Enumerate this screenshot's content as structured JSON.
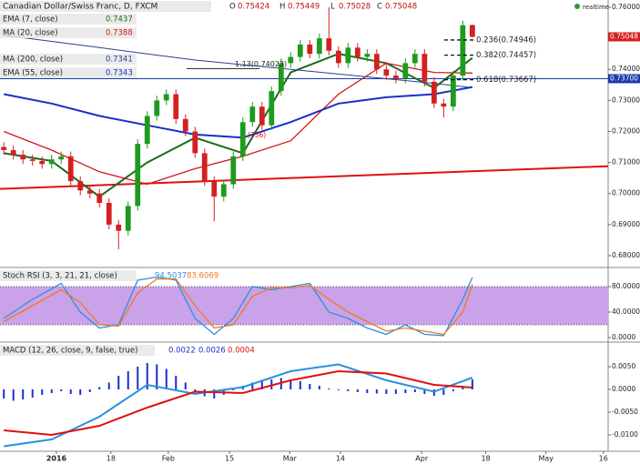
{
  "realtime": "realtime",
  "chart_data": [
    {
      "type": "candlestick",
      "title": "Canadian Dollar/Swiss Franc, D, FXCM",
      "ohlc_labels": [
        "O",
        "H",
        "L",
        "C"
      ],
      "up_color": "#1f9a1f",
      "down_color": "#d42020",
      "xlim": [
        -0.4,
        63.2
      ],
      "ylim": [
        0.67648,
        0.76234
      ],
      "yticks": [
        {
          "value": 0.68,
          "label": "0.68000"
        },
        {
          "value": 0.69,
          "label": "0.69000"
        },
        {
          "value": 0.7,
          "label": "0.70000"
        },
        {
          "value": 0.71,
          "label": "0.71000"
        },
        {
          "value": 0.72,
          "label": "0.72000"
        },
        {
          "value": 0.73,
          "label": "0.73000"
        },
        {
          "value": 0.74,
          "label": "0.74000"
        },
        {
          "value": 0.75,
          "label": "0.75000"
        },
        {
          "value": 0.76,
          "label": "0.76000"
        }
      ],
      "x": [
        0,
        1,
        2,
        3,
        4,
        5,
        6,
        7,
        8,
        9,
        10,
        11,
        12,
        13,
        14,
        15,
        16,
        17,
        18,
        19,
        20,
        21,
        22,
        23,
        24,
        25,
        26,
        27,
        28,
        29,
        30,
        31,
        32,
        33,
        34,
        35,
        36,
        37,
        38,
        39,
        40,
        41,
        42,
        43,
        44,
        45,
        46,
        47,
        48,
        49
      ],
      "open": [
        0.715,
        0.714,
        0.7125,
        0.711,
        0.7105,
        0.7095,
        0.711,
        0.712,
        0.704,
        0.701,
        0.7,
        0.697,
        0.69,
        0.688,
        0.696,
        0.716,
        0.725,
        0.73,
        0.732,
        0.724,
        0.72,
        0.713,
        0.704,
        0.699,
        0.703,
        0.712,
        0.723,
        0.728,
        0.722,
        0.733,
        0.742,
        0.744,
        0.748,
        0.745,
        0.75,
        0.746,
        0.742,
        0.747,
        0.744,
        0.745,
        0.74,
        0.738,
        0.737,
        0.742,
        0.745,
        0.736,
        0.729,
        0.728,
        0.738,
        0.75424
      ],
      "high": [
        0.7165,
        0.7155,
        0.714,
        0.7125,
        0.712,
        0.7125,
        0.7135,
        0.7135,
        0.7055,
        0.7025,
        0.7015,
        0.6985,
        0.6915,
        0.6975,
        0.7175,
        0.7265,
        0.7315,
        0.7335,
        0.7335,
        0.7255,
        0.7215,
        0.7145,
        0.7055,
        0.7045,
        0.7135,
        0.7245,
        0.7295,
        0.7295,
        0.7345,
        0.7435,
        0.7455,
        0.7495,
        0.7495,
        0.7515,
        0.76,
        0.7475,
        0.7485,
        0.7485,
        0.7465,
        0.7465,
        0.7415,
        0.7395,
        0.7435,
        0.7465,
        0.7465,
        0.7375,
        0.7305,
        0.7395,
        0.7557,
        0.75449
      ],
      "low": [
        0.7125,
        0.711,
        0.7095,
        0.709,
        0.708,
        0.708,
        0.7095,
        0.7025,
        0.6995,
        0.6985,
        0.6955,
        0.6885,
        0.682,
        0.6865,
        0.6945,
        0.7145,
        0.7235,
        0.7285,
        0.7225,
        0.7185,
        0.7115,
        0.7025,
        0.691,
        0.6975,
        0.7015,
        0.7105,
        0.7215,
        0.7205,
        0.7205,
        0.7315,
        0.7405,
        0.7425,
        0.7435,
        0.7435,
        0.7445,
        0.7405,
        0.7405,
        0.7425,
        0.7425,
        0.7385,
        0.7365,
        0.7355,
        0.7355,
        0.7405,
        0.7345,
        0.7275,
        0.7245,
        0.7265,
        0.7365,
        0.75028
      ],
      "close": [
        0.714,
        0.7125,
        0.711,
        0.7105,
        0.7095,
        0.711,
        0.712,
        0.704,
        0.701,
        0.7,
        0.697,
        0.69,
        0.688,
        0.696,
        0.716,
        0.725,
        0.73,
        0.732,
        0.724,
        0.72,
        0.713,
        0.704,
        0.699,
        0.703,
        0.712,
        0.723,
        0.728,
        0.722,
        0.733,
        0.742,
        0.744,
        0.748,
        0.745,
        0.75,
        0.746,
        0.742,
        0.747,
        0.744,
        0.745,
        0.74,
        0.738,
        0.737,
        0.742,
        0.745,
        0.736,
        0.729,
        0.728,
        0.738,
        0.7542,
        0.75048
      ],
      "series": [
        {
          "name": "EMA (7, close)",
          "color": "#1c6b1c",
          "line_width": 2,
          "x": [
            0,
            5,
            10,
            15,
            20,
            25,
            30,
            35,
            40,
            45,
            49
          ],
          "values": [
            0.713,
            0.7105,
            0.699,
            0.71,
            0.718,
            0.713,
            0.739,
            0.745,
            0.742,
            0.734,
            0.7437
          ]
        },
        {
          "name": "MA (20, close)",
          "color": "#d01818",
          "line_width": 1.3,
          "x": [
            0,
            5,
            10,
            15,
            20,
            25,
            30,
            35,
            40,
            45,
            49
          ],
          "values": [
            0.72,
            0.714,
            0.707,
            0.703,
            0.708,
            0.712,
            0.717,
            0.732,
            0.742,
            0.739,
            0.7388
          ]
        },
        {
          "name": "MA (200, close)",
          "color": "#2a3f8f",
          "line_width": 1,
          "x": [
            0,
            5,
            10,
            15,
            20,
            25,
            30,
            35,
            40,
            45,
            49
          ],
          "values": [
            0.751,
            0.749,
            0.747,
            0.745,
            0.743,
            0.7415,
            0.74,
            0.7385,
            0.737,
            0.7355,
            0.7341
          ]
        },
        {
          "name": "EMA (55, close)",
          "color": "#1530c8",
          "line_width": 2,
          "x": [
            0,
            5,
            10,
            15,
            20,
            25,
            30,
            35,
            40,
            45,
            49
          ],
          "values": [
            0.732,
            0.729,
            0.725,
            0.722,
            0.719,
            0.718,
            0.723,
            0.729,
            0.731,
            0.732,
            0.7343
          ]
        }
      ],
      "trendline": {
        "color": "#e01010",
        "x": [
          -0.4,
          63.2
        ],
        "values": [
          0.7015,
          0.7088
        ]
      },
      "hlines": [
        {
          "value": 0.737,
          "label": "0.73700",
          "color": "#1a3aa8"
        }
      ],
      "fibs": [
        {
          "label": "1.13(0.74023)",
          "value": 0.74023
        },
        {
          "label": "0.236(0.74946)",
          "value": 0.74946
        },
        {
          "label": "0.382(0.74457)",
          "value": 0.74457
        },
        {
          "label": "0.618(0.73667)",
          "value": 0.73667
        }
      ],
      "annotations": [
        {
          "text": "(756)",
          "color": "#e01010"
        }
      ]
    },
    {
      "type": "line",
      "title": "Stoch RSI (3, 3, 21, 21, close)",
      "xlim": [
        -0.4,
        63.2
      ],
      "ylim": [
        -5.7,
        108.6
      ],
      "yticks": [
        {
          "value": 0,
          "label": "0.0000"
        },
        {
          "value": 40,
          "label": "40.0000"
        },
        {
          "value": 80,
          "label": "80.0000"
        }
      ],
      "band": [
        20,
        80
      ],
      "band_color": "#c9a2ea",
      "series": [
        {
          "color": "#2f8fe0",
          "x": [
            0,
            3,
            6,
            8,
            10,
            12,
            14,
            16,
            18,
            20,
            22,
            24,
            26,
            28,
            30,
            32,
            34,
            36,
            38,
            40,
            42,
            44,
            46,
            48,
            49
          ],
          "values": [
            30,
            60,
            85,
            40,
            15,
            20,
            90,
            95,
            90,
            30,
            5,
            30,
            80,
            75,
            80,
            85,
            40,
            30,
            15,
            5,
            20,
            5,
            3,
            60,
            94.5037
          ]
        },
        {
          "color": "#f07a20",
          "x": [
            0,
            3,
            6,
            8,
            10,
            12,
            14,
            16,
            18,
            20,
            22,
            24,
            26,
            28,
            30,
            32,
            34,
            36,
            38,
            40,
            42,
            44,
            46,
            48,
            49
          ],
          "values": [
            25,
            50,
            75,
            55,
            20,
            18,
            70,
            92,
            92,
            50,
            15,
            20,
            65,
            78,
            78,
            82,
            60,
            40,
            25,
            10,
            15,
            10,
            5,
            40,
            83.6069
          ]
        }
      ]
    },
    {
      "type": "macd",
      "title": "MACD (12, 26, close, 9, false, true)",
      "xlim": [
        -0.4,
        63.2
      ],
      "ylim": [
        -0.0134,
        0.0102
      ],
      "yticks": [
        {
          "value": 0.005,
          "label": "0.0050"
        },
        {
          "value": 0,
          "label": "0.0000"
        },
        {
          "value": -0.005,
          "label": "-0.0050"
        },
        {
          "value": -0.01,
          "label": "-0.0100"
        }
      ],
      "xticks": [
        {
          "value": 5.5,
          "label": "2016"
        },
        {
          "value": 11.2,
          "label": "18"
        },
        {
          "value": 17.2,
          "label": "Feb"
        },
        {
          "value": 23.6,
          "label": "15"
        },
        {
          "value": 29.9,
          "label": "Mar"
        },
        {
          "value": 35.2,
          "label": "14"
        },
        {
          "value": 43.7,
          "label": "Apr"
        },
        {
          "value": 50.4,
          "label": "18"
        },
        {
          "value": 56.7,
          "label": "May"
        },
        {
          "value": 62.7,
          "label": "16"
        }
      ],
      "histogram": {
        "color": "#1a2fd0",
        "x": [
          0,
          1,
          2,
          3,
          4,
          5,
          6,
          7,
          8,
          9,
          10,
          11,
          12,
          13,
          14,
          15,
          16,
          17,
          18,
          19,
          20,
          21,
          22,
          23,
          24,
          25,
          26,
          27,
          28,
          29,
          30,
          31,
          32,
          33,
          34,
          35,
          36,
          37,
          38,
          39,
          40,
          41,
          42,
          43,
          44,
          45,
          46,
          47,
          48,
          49
        ],
        "values": [
          -0.002,
          -0.0025,
          -0.0022,
          -0.0018,
          -0.0012,
          -0.0008,
          -0.0004,
          -0.001,
          -0.0012,
          -0.0006,
          0.0005,
          0.0015,
          0.003,
          0.004,
          0.005,
          0.0058,
          0.0055,
          0.0045,
          0.003,
          0.0015,
          -0.0005,
          -0.0015,
          -0.002,
          -0.0012,
          -0.0002,
          0.0008,
          0.0015,
          0.0018,
          0.0022,
          0.0025,
          0.0022,
          0.0018,
          0.0012,
          0.0008,
          0.0002,
          -0.0002,
          -0.0004,
          -0.0006,
          -0.0008,
          -0.0009,
          -0.001,
          -0.001,
          -0.0008,
          -0.0006,
          -0.001,
          -0.0014,
          -0.0012,
          -0.0004,
          0.0008,
          0.0022
        ]
      },
      "series": [
        {
          "color": "#2a90e0",
          "x": [
            0,
            5,
            10,
            15,
            20,
            25,
            30,
            35,
            40,
            45,
            49
          ],
          "values": [
            -0.0125,
            -0.011,
            -0.006,
            0.001,
            -0.001,
            0.0005,
            0.004,
            0.0055,
            0.002,
            -0.0005,
            0.0026
          ]
        },
        {
          "color": "#e01010",
          "x": [
            0,
            5,
            10,
            15,
            20,
            25,
            30,
            35,
            40,
            45,
            49
          ],
          "values": [
            -0.009,
            -0.01,
            -0.008,
            -0.004,
            -0.0005,
            -0.0008,
            0.002,
            0.004,
            0.0035,
            0.001,
            0.0004
          ]
        }
      ]
    }
  ]
}
